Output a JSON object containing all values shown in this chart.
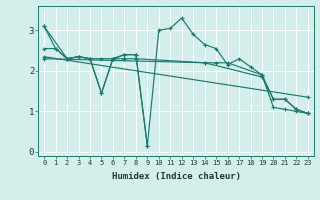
{
  "xlabel": "Humidex (Indice chaleur)",
  "bg_color": "#d4eeeb",
  "line_color": "#1a7a6e",
  "grid_color": "#ffffff",
  "xlim": [
    -0.5,
    23.5
  ],
  "ylim": [
    -0.1,
    3.6
  ],
  "yticks": [
    0,
    1,
    2,
    3
  ],
  "xticks": [
    0,
    1,
    2,
    3,
    4,
    5,
    6,
    7,
    8,
    9,
    10,
    11,
    12,
    13,
    14,
    15,
    16,
    17,
    18,
    19,
    20,
    21,
    22,
    23
  ],
  "lines": [
    {
      "x": [
        0,
        1,
        2,
        3,
        4,
        5,
        6,
        7,
        8,
        9,
        10,
        11,
        12,
        13,
        14,
        15,
        16,
        17,
        18,
        19,
        20,
        21,
        22,
        23
      ],
      "y": [
        3.1,
        2.55,
        2.3,
        2.35,
        2.3,
        1.45,
        2.3,
        2.4,
        2.4,
        0.15,
        3.0,
        3.05,
        3.3,
        2.9,
        2.65,
        2.55,
        2.15,
        2.3,
        2.1,
        1.9,
        1.1,
        1.05,
        1.0,
        0.95
      ]
    },
    {
      "x": [
        0,
        2,
        3,
        4,
        5,
        6,
        7,
        8,
        9
      ],
      "y": [
        3.1,
        2.3,
        2.35,
        2.3,
        1.45,
        2.3,
        2.4,
        2.4,
        0.15
      ]
    },
    {
      "x": [
        0,
        1,
        2,
        3,
        4,
        5,
        6,
        7,
        8,
        14,
        15,
        16,
        19,
        20,
        21,
        22,
        23
      ],
      "y": [
        2.55,
        2.55,
        2.3,
        2.35,
        2.3,
        2.3,
        2.3,
        2.3,
        2.3,
        2.2,
        2.2,
        2.2,
        1.9,
        1.3,
        1.3,
        1.05,
        0.95
      ]
    },
    {
      "x": [
        0,
        23
      ],
      "y": [
        2.35,
        1.35
      ]
    },
    {
      "x": [
        0,
        14,
        19,
        20,
        21,
        22,
        23
      ],
      "y": [
        2.3,
        2.2,
        1.85,
        1.3,
        1.3,
        1.05,
        0.95
      ]
    }
  ]
}
